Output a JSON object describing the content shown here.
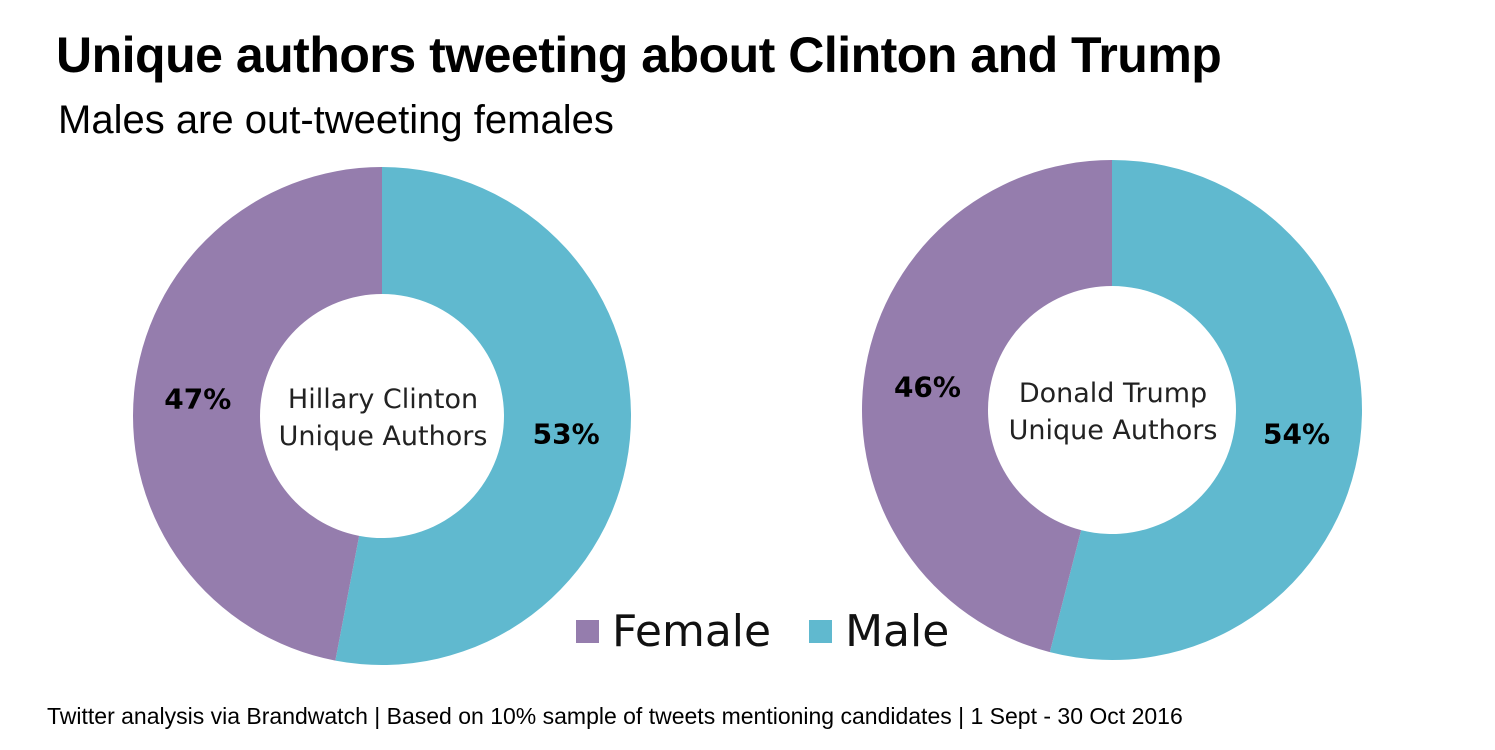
{
  "title": "Unique authors tweeting about Clinton and Trump",
  "subtitle": "Males are out-tweeting females",
  "footer": "Twitter analysis via Brandwatch | Based on 10% sample of tweets mentioning candidates | 1 Sept - 30 Oct 2016",
  "colors": {
    "female": "#957dad",
    "male": "#60b9cf"
  },
  "legend": [
    {
      "label": "Female",
      "color": "#957dad"
    },
    {
      "label": "Male",
      "color": "#60b9cf"
    }
  ],
  "chart_data": [
    {
      "type": "pie",
      "style": "donut",
      "center_label_lines": [
        "Hillary Clinton",
        "Unique Authors"
      ],
      "categories": [
        "Female",
        "Male"
      ],
      "values": [
        47,
        53
      ],
      "value_labels": [
        "47%",
        "53%"
      ]
    },
    {
      "type": "pie",
      "style": "donut",
      "center_label_lines": [
        "Donald Trump",
        "Unique Authors"
      ],
      "categories": [
        "Female",
        "Male"
      ],
      "values": [
        46,
        54
      ],
      "value_labels": [
        "46%",
        "54%"
      ]
    }
  ]
}
